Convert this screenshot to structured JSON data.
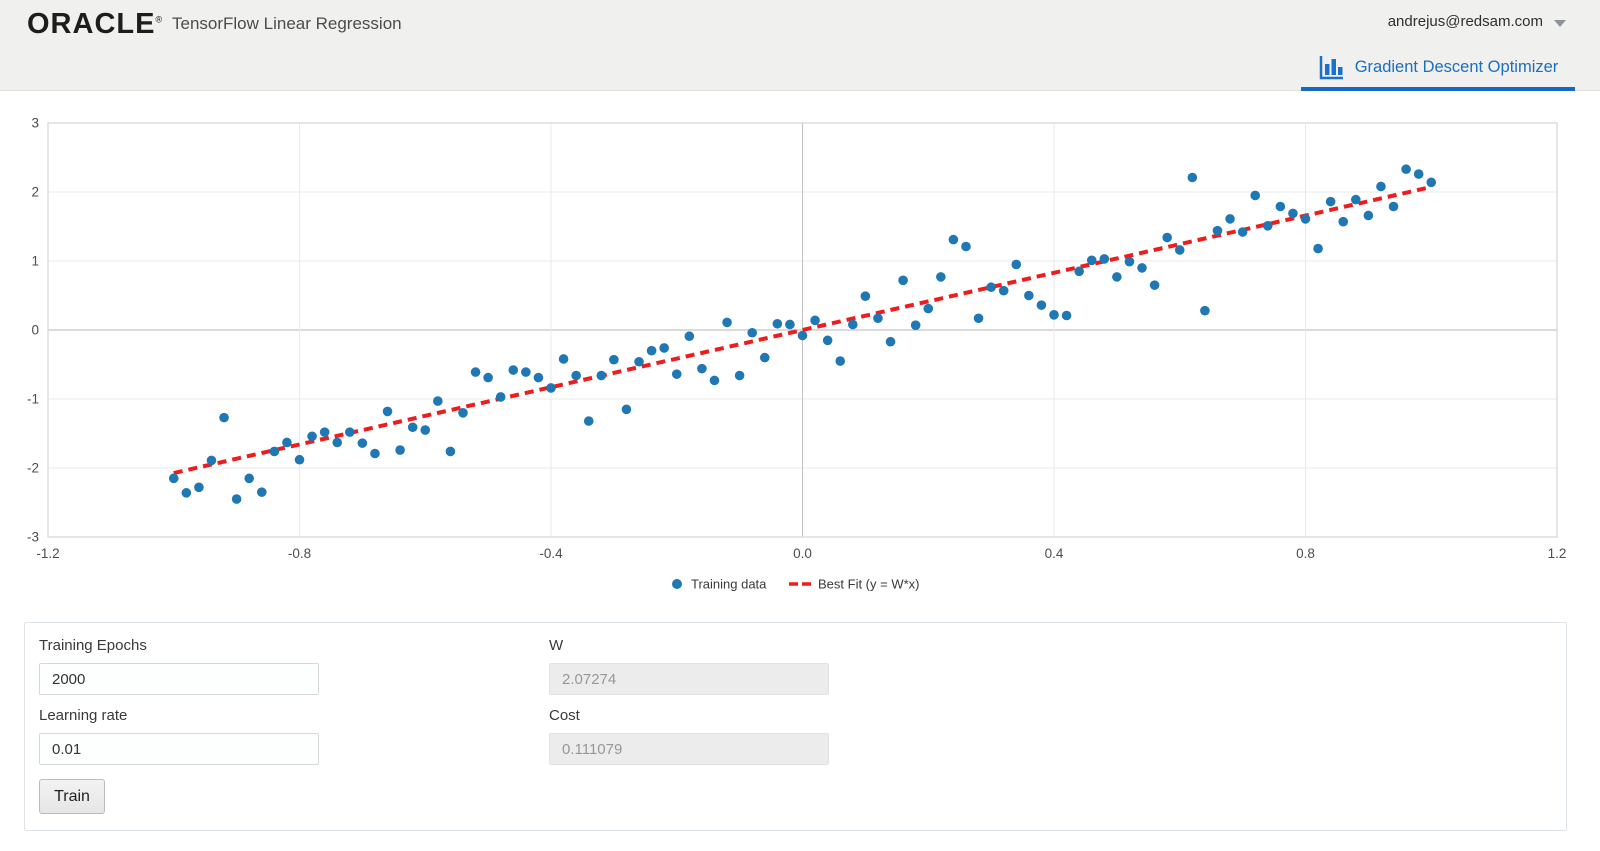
{
  "header": {
    "logo": "ORACLE",
    "logo_registered": "®",
    "title": "TensorFlow Linear Regression",
    "user_email": "andrejus@redsam.com"
  },
  "tab": {
    "label": "Gradient Descent Optimizer",
    "icon": "bar-chart-icon",
    "accent_color": "#1568c4",
    "text_color": "#1b6fc0"
  },
  "chart_data": {
    "type": "scatter",
    "title": "",
    "xlabel": "",
    "ylabel": "",
    "xlim": [
      -1.2,
      1.2
    ],
    "ylim": [
      -3,
      3
    ],
    "x_ticks": [
      -1.2,
      -0.8,
      -0.4,
      0.0,
      0.4,
      0.8,
      1.2
    ],
    "y_ticks": [
      -3,
      -2,
      -1,
      0,
      1,
      2,
      3
    ],
    "grid": true,
    "legend_position": "bottom",
    "colors": {
      "points": "#1f77b4",
      "fit_line": "#ee1c1c",
      "grid": "#e9e9e9",
      "zero_line": "#b5b5b5",
      "border": "#d6d6d6",
      "tick_text": "#4d4d4d"
    },
    "series": [
      {
        "name": "Training data",
        "kind": "scatter",
        "color": "#1f77b4",
        "points": [
          [
            -1.0,
            -2.15
          ],
          [
            -0.98,
            -2.36
          ],
          [
            -0.96,
            -2.28
          ],
          [
            -0.94,
            -1.89
          ],
          [
            -0.92,
            -1.27
          ],
          [
            -0.9,
            -2.45
          ],
          [
            -0.88,
            -2.15
          ],
          [
            -0.86,
            -2.35
          ],
          [
            -0.84,
            -1.76
          ],
          [
            -0.82,
            -1.63
          ],
          [
            -0.8,
            -1.88
          ],
          [
            -0.78,
            -1.54
          ],
          [
            -0.76,
            -1.48
          ],
          [
            -0.74,
            -1.63
          ],
          [
            -0.72,
            -1.48
          ],
          [
            -0.7,
            -1.64
          ],
          [
            -0.68,
            -1.79
          ],
          [
            -0.66,
            -1.18
          ],
          [
            -0.64,
            -1.74
          ],
          [
            -0.62,
            -1.41
          ],
          [
            -0.6,
            -1.45
          ],
          [
            -0.58,
            -1.03
          ],
          [
            -0.56,
            -1.76
          ],
          [
            -0.54,
            -1.2
          ],
          [
            -0.52,
            -0.61
          ],
          [
            -0.5,
            -0.69
          ],
          [
            -0.48,
            -0.97
          ],
          [
            -0.46,
            -0.58
          ],
          [
            -0.44,
            -0.61
          ],
          [
            -0.42,
            -0.69
          ],
          [
            -0.4,
            -0.84
          ],
          [
            -0.38,
            -0.42
          ],
          [
            -0.36,
            -0.66
          ],
          [
            -0.34,
            -1.32
          ],
          [
            -0.32,
            -0.66
          ],
          [
            -0.3,
            -0.43
          ],
          [
            -0.28,
            -1.15
          ],
          [
            -0.26,
            -0.46
          ],
          [
            -0.24,
            -0.3
          ],
          [
            -0.22,
            -0.26
          ],
          [
            -0.2,
            -0.64
          ],
          [
            -0.18,
            -0.09
          ],
          [
            -0.16,
            -0.56
          ],
          [
            -0.14,
            -0.73
          ],
          [
            -0.12,
            0.11
          ],
          [
            -0.1,
            -0.66
          ],
          [
            -0.08,
            -0.04
          ],
          [
            -0.06,
            -0.4
          ],
          [
            -0.04,
            0.09
          ],
          [
            -0.02,
            0.08
          ],
          [
            0.0,
            -0.08
          ],
          [
            0.02,
            0.14
          ],
          [
            0.04,
            -0.15
          ],
          [
            0.06,
            -0.45
          ],
          [
            0.08,
            0.08
          ],
          [
            0.1,
            0.49
          ],
          [
            0.12,
            0.17
          ],
          [
            0.14,
            -0.17
          ],
          [
            0.16,
            0.72
          ],
          [
            0.18,
            0.07
          ],
          [
            0.2,
            0.31
          ],
          [
            0.22,
            0.77
          ],
          [
            0.24,
            1.31
          ],
          [
            0.26,
            1.21
          ],
          [
            0.28,
            0.17
          ],
          [
            0.3,
            0.62
          ],
          [
            0.32,
            0.57
          ],
          [
            0.34,
            0.95
          ],
          [
            0.36,
            0.5
          ],
          [
            0.38,
            0.36
          ],
          [
            0.4,
            0.22
          ],
          [
            0.42,
            0.21
          ],
          [
            0.44,
            0.85
          ],
          [
            0.46,
            1.01
          ],
          [
            0.48,
            1.03
          ],
          [
            0.5,
            0.77
          ],
          [
            0.52,
            0.99
          ],
          [
            0.54,
            0.9
          ],
          [
            0.56,
            0.65
          ],
          [
            0.58,
            1.34
          ],
          [
            0.6,
            1.16
          ],
          [
            0.62,
            2.21
          ],
          [
            0.64,
            0.28
          ],
          [
            0.66,
            1.44
          ],
          [
            0.68,
            1.61
          ],
          [
            0.7,
            1.42
          ],
          [
            0.72,
            1.95
          ],
          [
            0.74,
            1.51
          ],
          [
            0.76,
            1.79
          ],
          [
            0.78,
            1.69
          ],
          [
            0.8,
            1.61
          ],
          [
            0.82,
            1.18
          ],
          [
            0.84,
            1.86
          ],
          [
            0.86,
            1.57
          ],
          [
            0.88,
            1.89
          ],
          [
            0.9,
            1.66
          ],
          [
            0.92,
            2.08
          ],
          [
            0.94,
            1.79
          ],
          [
            0.96,
            2.33
          ],
          [
            0.98,
            2.26
          ],
          [
            1.0,
            2.14
          ]
        ]
      },
      {
        "name": "Best Fit (y = W*x)",
        "kind": "line",
        "style": "dashed",
        "color": "#ee1c1c",
        "w": 2.07274,
        "x_range": [
          -1.0,
          1.0
        ]
      }
    ]
  },
  "form": {
    "fields": [
      {
        "label": "Training Epochs",
        "value": "2000",
        "disabled": false
      },
      {
        "label": "W",
        "value": "2.07274",
        "disabled": true
      },
      {
        "label": "Learning rate",
        "value": "0.01",
        "disabled": false
      },
      {
        "label": "Cost",
        "value": "0.111079",
        "disabled": true
      }
    ],
    "train_label": "Train"
  }
}
